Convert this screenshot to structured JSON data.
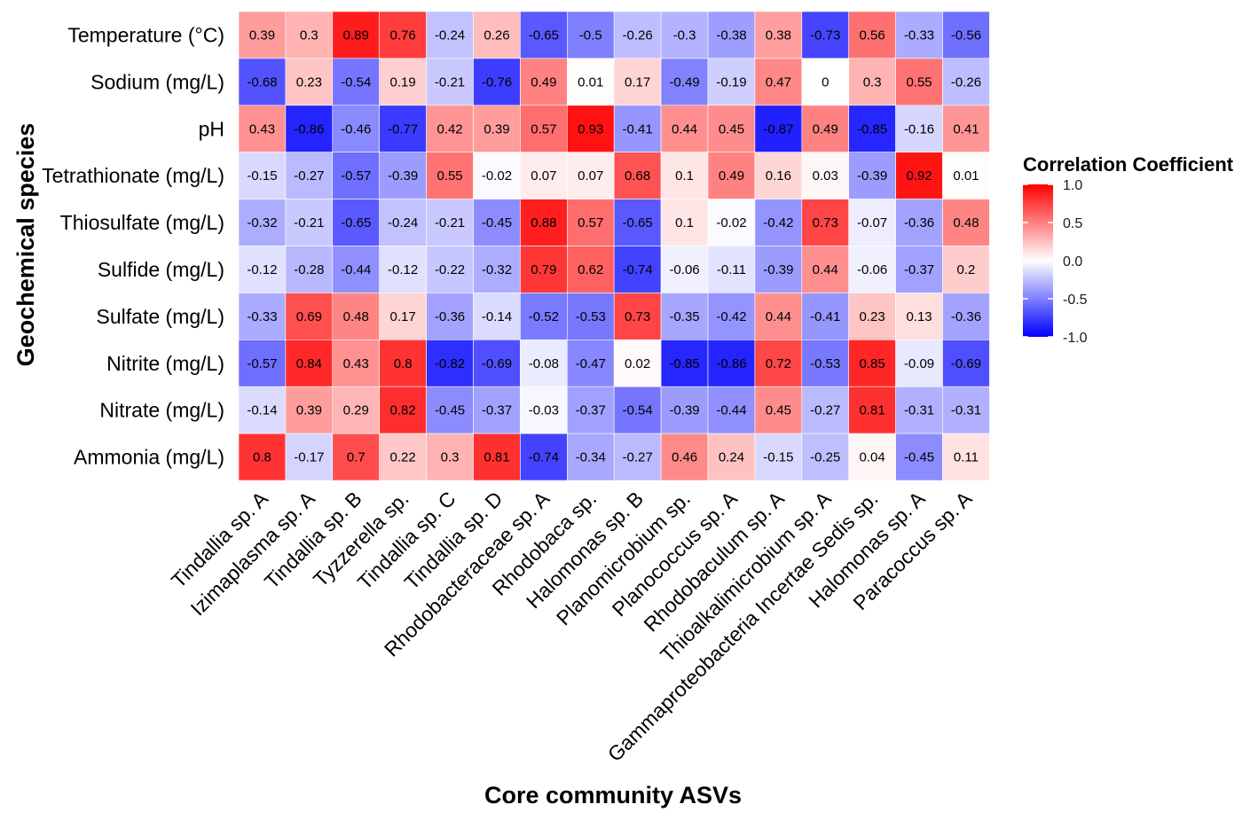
{
  "chart_data": {
    "type": "heatmap",
    "xlabel": "Core community ASVs",
    "ylabel": "Geochemical species",
    "x": [
      "Tindallia sp. A",
      "Izimaplasma sp. A",
      "Tindallia sp. B",
      "Tyzzerella sp.",
      "Tindallia sp. C",
      "Tindallia sp. D",
      "Rhodobacteraceae sp. A",
      "Rhodobaca sp.",
      "Halomonas sp. B",
      "Planomicrobium sp.",
      "Planococcus sp. A",
      "Rhodobaculum sp. A",
      "Thioalkalimicrobium sp. A",
      "Gammaproteobacteria Incertae Sedis sp.",
      "Halomonas sp. A",
      "Paracoccus sp. A"
    ],
    "y": [
      "Temperature (°C)",
      "Sodium (mg/L)",
      "pH",
      "Tetrathionate (mg/L)",
      "Thiosulfate (mg/L)",
      "Sulfide (mg/L)",
      "Sulfate (mg/L)",
      "Nitrite (mg/L)",
      "Nitrate (mg/L)",
      "Ammonia (mg/L)"
    ],
    "values": [
      [
        0.39,
        0.3,
        0.89,
        0.76,
        -0.24,
        0.26,
        -0.65,
        -0.5,
        -0.26,
        -0.3,
        -0.38,
        0.38,
        -0.73,
        0.56,
        -0.33,
        -0.56
      ],
      [
        -0.68,
        0.23,
        -0.54,
        0.19,
        -0.21,
        -0.76,
        0.49,
        0.01,
        0.17,
        -0.49,
        -0.19,
        0.47,
        0,
        0.3,
        0.55,
        -0.26
      ],
      [
        0.43,
        -0.86,
        -0.46,
        -0.77,
        0.42,
        0.39,
        0.57,
        0.93,
        -0.41,
        0.44,
        0.45,
        -0.87,
        0.49,
        -0.85,
        -0.16,
        0.41
      ],
      [
        -0.15,
        -0.27,
        -0.57,
        -0.39,
        0.55,
        -0.02,
        0.07,
        0.07,
        0.68,
        0.1,
        0.49,
        0.16,
        0.03,
        -0.39,
        0.92,
        0.01
      ],
      [
        -0.32,
        -0.21,
        -0.65,
        -0.24,
        -0.21,
        -0.45,
        0.88,
        0.57,
        -0.65,
        0.1,
        -0.02,
        -0.42,
        0.73,
        -0.07,
        -0.36,
        0.48
      ],
      [
        -0.12,
        -0.28,
        -0.44,
        -0.12,
        -0.22,
        -0.32,
        0.79,
        0.62,
        -0.74,
        -0.06,
        -0.11,
        -0.39,
        0.44,
        -0.06,
        -0.37,
        0.2
      ],
      [
        -0.33,
        0.69,
        0.48,
        0.17,
        -0.36,
        -0.14,
        -0.52,
        -0.53,
        0.73,
        -0.35,
        -0.42,
        0.44,
        -0.41,
        0.23,
        0.13,
        -0.36
      ],
      [
        -0.57,
        0.84,
        0.43,
        0.8,
        -0.82,
        -0.69,
        -0.08,
        -0.47,
        0.02,
        -0.85,
        -0.86,
        0.72,
        -0.53,
        0.85,
        -0.09,
        -0.69
      ],
      [
        -0.14,
        0.39,
        0.29,
        0.82,
        -0.45,
        -0.37,
        -0.03,
        -0.37,
        -0.54,
        -0.39,
        -0.44,
        0.45,
        -0.27,
        0.81,
        -0.31,
        -0.31
      ],
      [
        0.8,
        -0.17,
        0.7,
        0.22,
        0.3,
        0.81,
        -0.74,
        -0.34,
        -0.27,
        0.46,
        0.24,
        -0.15,
        -0.25,
        0.04,
        -0.45,
        0.11
      ]
    ],
    "legend": {
      "title": "Correlation Coefficient",
      "position": "right",
      "range": [
        -1,
        1
      ],
      "ticks": [
        "1.0",
        "0.5",
        "0.0",
        "-0.5",
        "-1.0"
      ],
      "colors": {
        "low": "#0000ff",
        "mid": "#ffffff",
        "high": "#ff0000"
      }
    }
  }
}
